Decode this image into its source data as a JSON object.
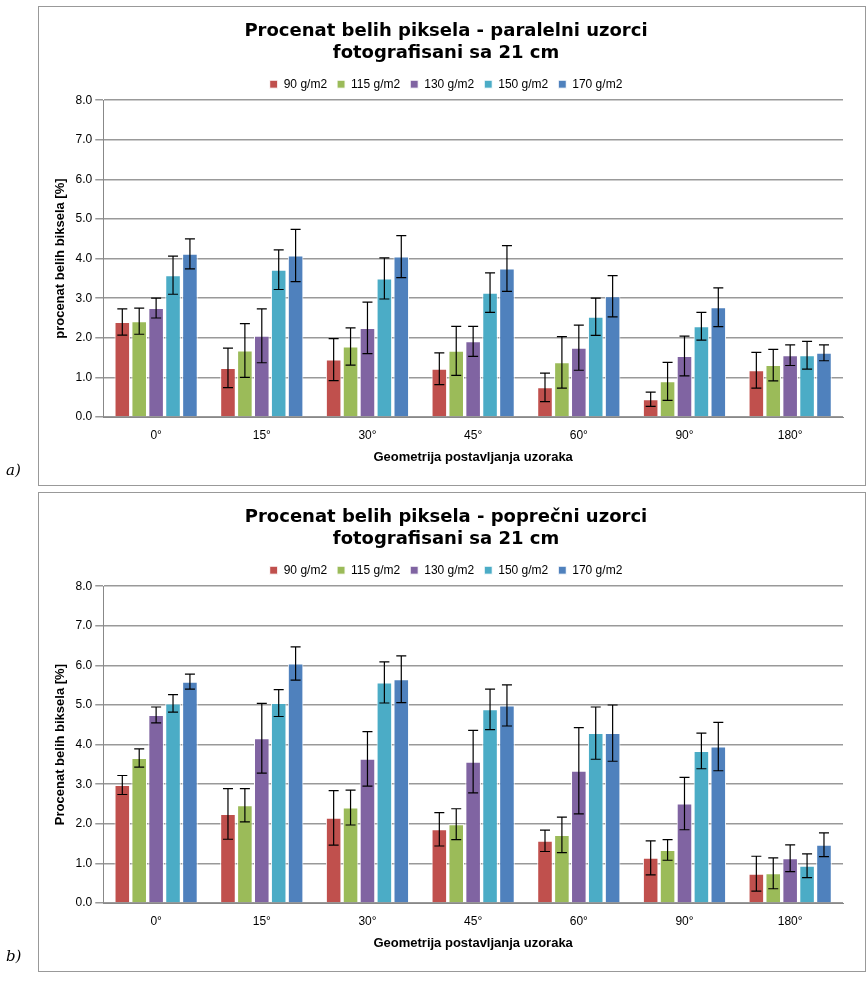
{
  "chart_data": [
    {
      "type": "bar",
      "title": "Procenat belih piksela - paralelni uzorci\nfotografisani sa 21 cm",
      "xlabel": "Geometrija postavljanja uzoraka",
      "ylabel": "procenat belih biksela [%]",
      "categories": [
        "0°",
        "15°",
        "30°",
        "45°",
        "60°",
        "90°",
        "180°"
      ],
      "ylim": [
        0,
        8
      ],
      "yticks": [
        {
          "value": 0,
          "label": "0.0"
        },
        {
          "value": 1,
          "label": "1.0"
        },
        {
          "value": 2,
          "label": "2.0"
        },
        {
          "value": 3,
          "label": "3.0"
        },
        {
          "value": 4,
          "label": "4.0"
        },
        {
          "value": 5,
          "label": "5.0"
        },
        {
          "value": 6,
          "label": "6.0"
        },
        {
          "value": 7,
          "label": "7.0"
        },
        {
          "value": 8,
          "label": "8.0"
        }
      ],
      "grid": "y",
      "legend": "top",
      "annotations": [
        "a)"
      ],
      "series": [
        {
          "name": "90 g/m2",
          "color": "#c0504d",
          "values": [
            2.4,
            1.24,
            1.45,
            1.22,
            0.75,
            0.45,
            1.18
          ],
          "errors": [
            0.33,
            0.5,
            0.53,
            0.4,
            0.36,
            0.18,
            0.45
          ]
        },
        {
          "name": "115 g/m2",
          "color": "#9bbb59",
          "values": [
            2.42,
            1.68,
            1.78,
            1.67,
            1.38,
            0.9,
            1.31
          ],
          "errors": [
            0.33,
            0.68,
            0.47,
            0.62,
            0.65,
            0.48,
            0.4
          ]
        },
        {
          "name": "130 g/m2",
          "color": "#8064a2",
          "values": [
            2.75,
            2.05,
            2.25,
            1.91,
            1.75,
            1.54,
            1.56
          ],
          "errors": [
            0.25,
            0.68,
            0.65,
            0.38,
            0.57,
            0.5,
            0.26
          ]
        },
        {
          "name": "150 g/m2",
          "color": "#4bacc6",
          "values": [
            3.58,
            3.72,
            3.5,
            3.14,
            2.53,
            2.29,
            1.56
          ],
          "errors": [
            0.48,
            0.5,
            0.52,
            0.5,
            0.47,
            0.35,
            0.35
          ]
        },
        {
          "name": "170 g/m2",
          "color": "#4f81bd",
          "values": [
            4.12,
            4.08,
            4.05,
            3.75,
            3.05,
            2.77,
            1.62
          ],
          "errors": [
            0.38,
            0.66,
            0.53,
            0.58,
            0.52,
            0.49,
            0.2
          ]
        }
      ]
    },
    {
      "type": "bar",
      "title": "Procenat belih piksela - poprečni uzorci\nfotografisani sa 21 cm",
      "xlabel": "Geometrija postavljanja uzoraka",
      "ylabel": "Procenat belih biksela [%]",
      "categories": [
        "0°",
        "15°",
        "30°",
        "45°",
        "60°",
        "90°",
        "180°"
      ],
      "ylim": [
        0,
        8
      ],
      "yticks": [
        {
          "value": 0,
          "label": "0.0"
        },
        {
          "value": 1,
          "label": "1.0"
        },
        {
          "value": 2,
          "label": "2.0"
        },
        {
          "value": 3,
          "label": "3.0"
        },
        {
          "value": 4,
          "label": "4.0"
        },
        {
          "value": 5,
          "label": "5.0"
        },
        {
          "value": 6,
          "label": "6.0"
        },
        {
          "value": 7,
          "label": "7.0"
        },
        {
          "value": 8,
          "label": "8.0"
        }
      ],
      "grid": "y",
      "legend": "top",
      "annotations": [
        "b)"
      ],
      "series": [
        {
          "name": "90 g/m2",
          "color": "#c0504d",
          "values": [
            2.98,
            2.25,
            2.15,
            1.86,
            1.57,
            1.14,
            0.74
          ],
          "errors": [
            0.24,
            0.64,
            0.69,
            0.42,
            0.27,
            0.43,
            0.44
          ]
        },
        {
          "name": "115 g/m2",
          "color": "#9bbb59",
          "values": [
            3.66,
            2.47,
            2.41,
            1.99,
            1.72,
            1.34,
            0.75
          ],
          "errors": [
            0.23,
            0.42,
            0.44,
            0.39,
            0.45,
            0.26,
            0.39
          ]
        },
        {
          "name": "130 g/m2",
          "color": "#8064a2",
          "values": [
            4.75,
            4.16,
            3.64,
            3.57,
            3.34,
            2.51,
            1.13
          ],
          "errors": [
            0.2,
            0.88,
            0.69,
            0.79,
            1.09,
            0.66,
            0.34
          ]
        },
        {
          "name": "150 g/m2",
          "color": "#4bacc6",
          "values": [
            5.04,
            5.05,
            5.57,
            4.89,
            4.29,
            3.84,
            0.94
          ],
          "errors": [
            0.22,
            0.34,
            0.52,
            0.51,
            0.66,
            0.45,
            0.3
          ]
        },
        {
          "name": "170 g/m2",
          "color": "#4f81bd",
          "values": [
            5.59,
            6.05,
            5.65,
            4.99,
            4.29,
            3.95,
            1.47
          ],
          "errors": [
            0.19,
            0.42,
            0.59,
            0.52,
            0.71,
            0.61,
            0.3
          ]
        }
      ]
    }
  ]
}
